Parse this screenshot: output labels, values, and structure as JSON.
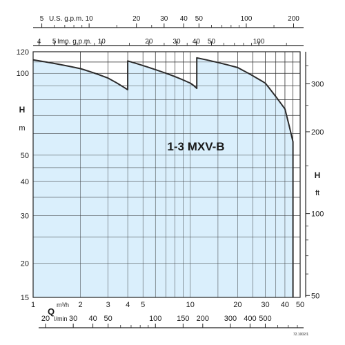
{
  "chart_data": {
    "type": "area",
    "title": "1-3 MXV-B",
    "y_scale": "log",
    "x_scale": "log",
    "fill_color": "#d4ecfb",
    "line_color": "#2b2b2b",
    "axes": {
      "x_flow_m3h": {
        "label": "m³/h",
        "symbol": "Q",
        "range": [
          1,
          50
        ],
        "ticks": [
          {
            "v": 1,
            "t": "1"
          },
          {
            "v": 2,
            "t": "2"
          },
          {
            "v": 3,
            "t": "3"
          },
          {
            "v": 4,
            "t": "4"
          },
          {
            "v": 5,
            "t": "5"
          },
          {
            "v": 10,
            "t": "10"
          },
          {
            "v": 20,
            "t": "20"
          },
          {
            "v": 30,
            "t": "30"
          },
          {
            "v": 40,
            "t": "40"
          },
          {
            "v": 50,
            "t": "50"
          }
        ],
        "gridlines": [
          1,
          2,
          3,
          4,
          5,
          6,
          7,
          8,
          9,
          10,
          15,
          20,
          25,
          30,
          35,
          40,
          45,
          50
        ]
      },
      "x_flow_lmin": {
        "label": "l/min",
        "ticks": [
          {
            "v": 20,
            "t": "20"
          },
          {
            "v": 30,
            "t": "30"
          },
          {
            "v": 40,
            "t": "40"
          },
          {
            "v": 50,
            "t": "50"
          },
          {
            "v": 100,
            "t": "100"
          },
          {
            "v": 150,
            "t": "150"
          },
          {
            "v": 200,
            "t": "200"
          },
          {
            "v": 300,
            "t": "300"
          },
          {
            "v": 400,
            "t": "400"
          },
          {
            "v": 500,
            "t": "500"
          }
        ],
        "minor": [
          60,
          70,
          80,
          90,
          600,
          700,
          800
        ]
      },
      "x_usgpm": {
        "label": "U.S. g.p.m.",
        "ticks": [
          {
            "v": 5,
            "t": "5"
          },
          {
            "v": 10,
            "t": "10"
          },
          {
            "v": 20,
            "t": "20"
          },
          {
            "v": 30,
            "t": "30"
          },
          {
            "v": 40,
            "t": "40"
          },
          {
            "v": 50,
            "t": "50"
          },
          {
            "v": 100,
            "t": "100"
          },
          {
            "v": 200,
            "t": "200"
          }
        ],
        "minor": [
          6,
          7,
          8,
          9,
          15,
          25,
          60,
          70,
          80,
          90,
          150
        ]
      },
      "x_impgpm": {
        "label": "Imp. g.p.m.",
        "ticks": [
          {
            "v": 4,
            "t": "4"
          },
          {
            "v": 5,
            "t": "5"
          },
          {
            "v": 10,
            "t": "10"
          },
          {
            "v": 20,
            "t": "20"
          },
          {
            "v": 30,
            "t": "30"
          },
          {
            "v": 40,
            "t": "40"
          },
          {
            "v": 50,
            "t": "50"
          },
          {
            "v": 100,
            "t": "100"
          }
        ],
        "minor": [
          6,
          7,
          8,
          9,
          15,
          25,
          35,
          60,
          70,
          80,
          90,
          150
        ]
      },
      "y_head_m": {
        "label": "H",
        "unit": "m",
        "range": [
          15,
          120
        ],
        "ticks": [
          {
            "v": 15,
            "t": "15"
          },
          {
            "v": 20,
            "t": "20"
          },
          {
            "v": 30,
            "t": "30"
          },
          {
            "v": 40,
            "t": "40"
          },
          {
            "v": 50,
            "t": "50"
          },
          {
            "v": 100,
            "t": "100"
          },
          {
            "v": 120,
            "t": "120"
          }
        ],
        "gridlines": [
          15,
          20,
          25,
          30,
          35,
          40,
          45,
          50,
          60,
          70,
          80,
          90,
          100,
          110,
          120
        ]
      },
      "y_head_ft": {
        "label": "H",
        "unit": "ft",
        "ticks": [
          {
            "v": 50,
            "t": "50"
          },
          {
            "v": 100,
            "t": "100"
          },
          {
            "v": 200,
            "t": "200"
          },
          {
            "v": 300,
            "t": "300"
          }
        ],
        "minor": [
          60,
          70,
          80,
          90,
          150,
          250,
          350
        ]
      }
    },
    "series": [
      {
        "points": [
          [
            1,
            112
          ],
          [
            2,
            104
          ],
          [
            3,
            96
          ],
          [
            4,
            87
          ],
          [
            4,
            111
          ],
          [
            7,
            100
          ],
          [
            10,
            92
          ],
          [
            11,
            88
          ],
          [
            11,
            114
          ],
          [
            20,
            105
          ],
          [
            30,
            92
          ],
          [
            40,
            74
          ],
          [
            45,
            56
          ],
          [
            45,
            15
          ]
        ]
      }
    ],
    "footnote": "72.1002/1"
  }
}
